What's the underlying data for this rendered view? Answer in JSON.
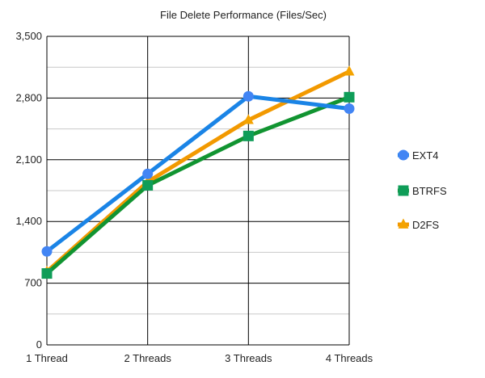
{
  "chart_data": {
    "type": "line",
    "title": "File Delete Performance (Files/Sec)",
    "xlabel": "",
    "ylabel": "",
    "categories": [
      "1 Thread",
      "2 Threads",
      "3 Threads",
      "4 Threads"
    ],
    "ylim": [
      0,
      3500
    ],
    "yticks": [
      0,
      700,
      1400,
      2100,
      2800,
      3500
    ],
    "ytick_labels": [
      "0",
      "700",
      "1,400",
      "2,100",
      "2,800",
      "3,500"
    ],
    "grid": true,
    "legend_position": "right",
    "series": [
      {
        "name": "EXT4",
        "values": [
          1060,
          1940,
          2820,
          2680
        ],
        "color": "#1a84e6",
        "marker_color": "#4285f4",
        "marker": "circle"
      },
      {
        "name": "BTRFS",
        "values": [
          810,
          1810,
          2370,
          2810
        ],
        "color": "#119431",
        "marker_color": "#0f9d58",
        "marker": "square"
      },
      {
        "name": "D2FS",
        "values": [
          830,
          1850,
          2550,
          3100
        ],
        "color": "#f29900",
        "marker_color": "#f4a300",
        "marker": "triangle"
      }
    ]
  }
}
